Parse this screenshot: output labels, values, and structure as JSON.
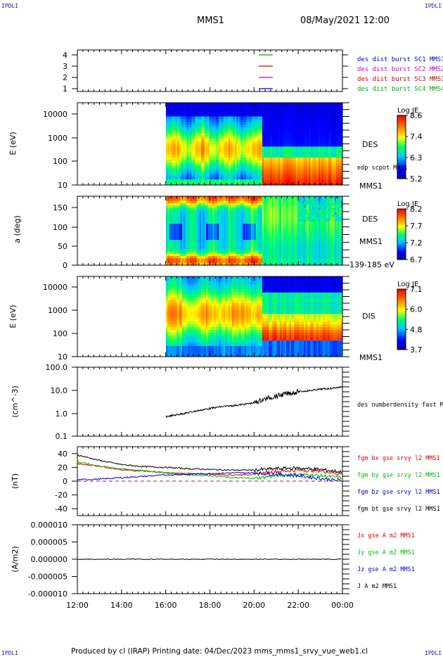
{
  "header": {
    "corner_label": "IPDLI",
    "title": "MMS1",
    "datetime": "08/May/2021 12:00"
  },
  "footer": {
    "text": "Produced by cl (IRAP)   Printing date: 04/Dec/2023   mms_mms1_srvy_vue_web1.cl"
  },
  "colors": {
    "sc1": "#0000cc",
    "sc2": "#cc00cc",
    "sc3": "#cc0000",
    "sc4": "#00aa00",
    "bx": "#dd0000",
    "by": "#00bb00",
    "bz": "#0000dd",
    "bt": "#000000"
  },
  "chart_data": [
    {
      "type": "line",
      "panel": "spacecraft-availability",
      "ytick_labels": [
        "4",
        "3",
        "2",
        "1"
      ],
      "legend": [
        {
          "name": "des dist burst SC1 MMS1",
          "color": "#0000cc"
        },
        {
          "name": "des dist burst SC2 MMS2",
          "color": "#cc00cc"
        },
        {
          "name": "des dist burst SC3 MMS3",
          "color": "#cc0000"
        },
        {
          "name": "des dist burst SC4 MMS4",
          "color": "#00aa00"
        }
      ]
    },
    {
      "type": "heatmap",
      "panel": "des-energy-spectrogram",
      "ylabel": "E (eV)",
      "ytick_labels": [
        "10000",
        "1000",
        "100",
        "10"
      ],
      "label": "DES",
      "sublabel": "edp scpot MMS1",
      "bottom_label": "MMS1",
      "colorbar": {
        "title": "Log JE",
        "ticks": [
          "8.6",
          "7.4",
          "6.3",
          "5.2"
        ]
      }
    },
    {
      "type": "heatmap",
      "panel": "des-pitch-angle",
      "ylabel": "a (deg)",
      "ytick_labels": [
        "150",
        "100",
        "50",
        "0"
      ],
      "label": "DES",
      "sublabel": "MMS1",
      "bottom_label": "139-185 eV",
      "colorbar": {
        "title": "Log JE",
        "ticks": [
          "8.2",
          "7.7",
          "7.2",
          "6.7"
        ]
      }
    },
    {
      "type": "heatmap",
      "panel": "dis-energy-spectrogram",
      "ylabel": "E (eV)",
      "ytick_labels": [
        "10000",
        "1000",
        "100",
        "10"
      ],
      "label": "DIS",
      "bottom_label": "MMS1",
      "colorbar": {
        "title": "Log JE",
        "ticks": [
          "7.1",
          "6.0",
          "4.8",
          "3.7"
        ]
      }
    },
    {
      "type": "line",
      "panel": "density",
      "ylabel": "(cm^-3)",
      "ytick_labels": [
        "100.0",
        "10.0",
        "1.0",
        "0.1"
      ],
      "series": [
        {
          "name": "des numberdensity fast M",
          "x": [
            16.0,
            16.5,
            17.0,
            17.5,
            18.0,
            18.5,
            19.0,
            19.5,
            20.0,
            20.5,
            21.0,
            21.5,
            22.0,
            22.5,
            23.0,
            23.5,
            24.0
          ],
          "values": [
            0.7,
            0.85,
            1.05,
            1.3,
            1.6,
            1.9,
            2.1,
            2.4,
            2.8,
            4.2,
            5.5,
            7.0,
            8.5,
            9.5,
            11.0,
            12.0,
            14.0
          ]
        }
      ]
    },
    {
      "type": "line",
      "panel": "magnetic-field",
      "ylabel": "(nT)",
      "ytick_labels": [
        "40",
        "20",
        "0",
        "-20",
        "-40"
      ],
      "ylim": [
        -50,
        50
      ],
      "x": [
        12.0,
        13.0,
        14.0,
        15.0,
        16.0,
        17.0,
        18.0,
        19.0,
        20.0,
        21.0,
        22.0,
        23.0,
        24.0
      ],
      "series": [
        {
          "name": "fgm bx gse srvy l2 MMS1",
          "color": "#dd0000",
          "values": [
            25,
            22,
            16,
            15,
            12,
            11,
            10,
            9,
            10,
            14,
            16,
            15,
            10
          ]
        },
        {
          "name": "fgm by gse srvy l2 MMS1",
          "color": "#00bb00",
          "values": [
            28,
            22,
            18,
            15,
            12,
            9,
            8,
            5,
            4,
            8,
            10,
            8,
            5
          ]
        },
        {
          "name": "fgm bz gse srvy l2 MMS1",
          "color": "#0000dd",
          "values": [
            2,
            3,
            5,
            7,
            9,
            10,
            11,
            12,
            12,
            10,
            8,
            4,
            0
          ]
        },
        {
          "name": "fgm bt gse srvy l2 MMS1",
          "color": "#000000",
          "values": [
            38,
            30,
            24,
            21,
            20,
            18,
            17,
            16,
            16,
            18,
            19,
            17,
            13
          ]
        }
      ]
    },
    {
      "type": "line",
      "panel": "current-density",
      "ylabel": "(A/m2)",
      "ytick_labels": [
        "0.000010",
        "0.000005",
        "0.000000",
        "-0.000005",
        "-0.000010"
      ],
      "ylim": [
        -1e-05,
        1e-05
      ],
      "series": [
        {
          "name": "Jx gse A m2 MMS1",
          "color": "#dd0000"
        },
        {
          "name": "Jy gse A m2 MMS1",
          "color": "#00bb00"
        },
        {
          "name": "Jz gse A m2 MMS1",
          "color": "#0000dd"
        },
        {
          "name": "J A m2 MMS1",
          "color": "#000000"
        }
      ]
    }
  ],
  "xaxis": {
    "tick_labels": [
      "12:00",
      "14:00",
      "16:00",
      "18:00",
      "20:00",
      "22:00",
      "00:00"
    ]
  }
}
